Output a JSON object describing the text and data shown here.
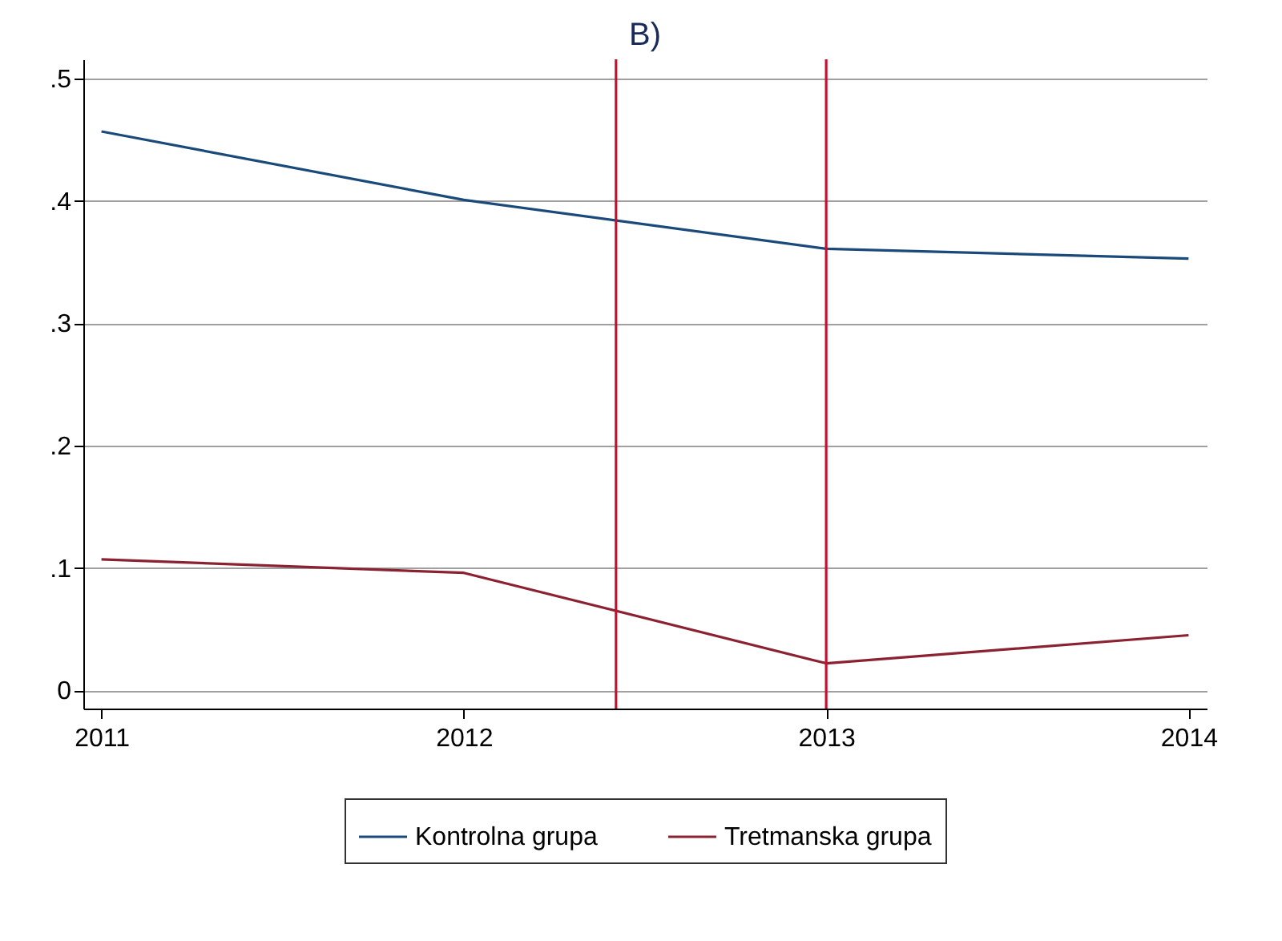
{
  "chart_data": {
    "type": "line",
    "title": "B)",
    "x": [
      2011,
      2012,
      2013,
      2014
    ],
    "series": [
      {
        "name": "Kontrolna grupa",
        "color": "#1a4a7a",
        "values": [
          0.457,
          0.401,
          0.361,
          0.353
        ]
      },
      {
        "name": "Tretmanska grupa",
        "color": "#8b2232",
        "values": [
          0.107,
          0.096,
          0.022,
          0.045
        ]
      }
    ],
    "xlim": [
      2010.95,
      2014.05
    ],
    "xticks": [
      2011,
      2012,
      2013,
      2014
    ],
    "ylim": [
      -0.015,
      0.516
    ],
    "yticks": [
      {
        "value": 0,
        "label": "0"
      },
      {
        "value": 0.1,
        "label": ".1"
      },
      {
        "value": 0.2,
        "label": ".2"
      },
      {
        "value": 0.3,
        "label": ".3"
      },
      {
        "value": 0.4,
        "label": ".4"
      },
      {
        "value": 0.5,
        "label": ".5"
      }
    ],
    "ref_lines": [
      {
        "axis": "x",
        "value": 2012.42,
        "color": "#c8102e"
      },
      {
        "axis": "x",
        "value": 2013,
        "color": "#c8102e"
      }
    ],
    "grid": "y",
    "legend": "bottom",
    "line_style": "solid",
    "marker": "none"
  }
}
